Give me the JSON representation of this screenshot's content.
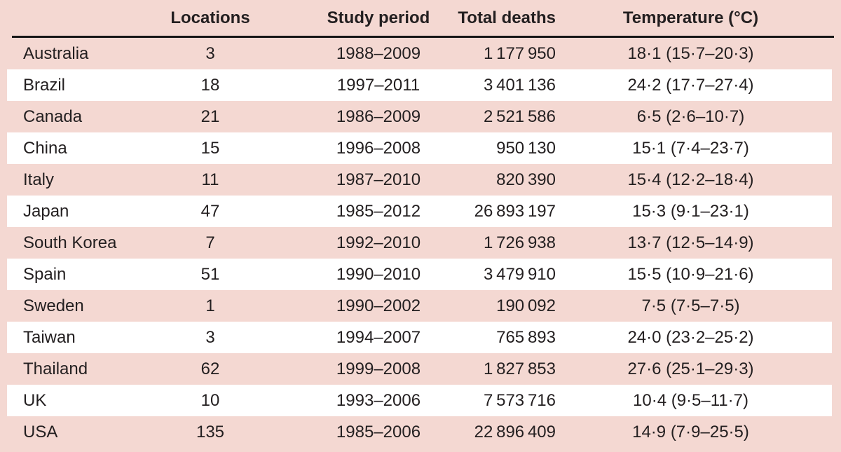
{
  "style": {
    "pink": "#f4d8d2",
    "white": "#ffffff",
    "text": "#231f20",
    "rule_color": "#161616"
  },
  "table": {
    "columns": [
      "",
      "Locations",
      "Study period",
      "Total deaths",
      "Temperature (°C)"
    ],
    "rows": [
      {
        "country": "Australia",
        "locations": "3",
        "period": "1988–2009",
        "deaths": "1 177 950",
        "temperature": "18·1 (15·7–20·3)"
      },
      {
        "country": "Brazil",
        "locations": "18",
        "period": "1997–2011",
        "deaths": "3 401 136",
        "temperature": "24·2 (17·7–27·4)"
      },
      {
        "country": "Canada",
        "locations": "21",
        "period": "1986–2009",
        "deaths": "2 521 586",
        "temperature": "6·5 (2·6–10·7)"
      },
      {
        "country": "China",
        "locations": "15",
        "period": "1996–2008",
        "deaths": "950 130",
        "temperature": "15·1 (7·4–23·7)"
      },
      {
        "country": "Italy",
        "locations": "11",
        "period": "1987–2010",
        "deaths": "820 390",
        "temperature": "15·4 (12·2–18·4)"
      },
      {
        "country": "Japan",
        "locations": "47",
        "period": "1985–2012",
        "deaths": "26 893 197",
        "temperature": "15·3 (9·1–23·1)"
      },
      {
        "country": "South Korea",
        "locations": "7",
        "period": "1992–2010",
        "deaths": "1 726 938",
        "temperature": "13·7 (12·5–14·9)"
      },
      {
        "country": "Spain",
        "locations": "51",
        "period": "1990–2010",
        "deaths": "3 479 910",
        "temperature": "15·5 (10·9–21·6)"
      },
      {
        "country": "Sweden",
        "locations": "1",
        "period": "1990–2002",
        "deaths": "190 092",
        "temperature": "7·5 (7·5–7·5)"
      },
      {
        "country": "Taiwan",
        "locations": "3",
        "period": "1994–2007",
        "deaths": "765 893",
        "temperature": "24·0 (23·2–25·2)"
      },
      {
        "country": "Thailand",
        "locations": "62",
        "period": "1999–2008",
        "deaths": "1 827 853",
        "temperature": "27·6 (25·1–29·3)"
      },
      {
        "country": "UK",
        "locations": "10",
        "period": "1993–2006",
        "deaths": "7 573 716",
        "temperature": "10·4 (9·5–11·7)"
      },
      {
        "country": "USA",
        "locations": "135",
        "period": "1985–2006",
        "deaths": "22 896 409",
        "temperature": "14·9 (7·9–25·5)"
      }
    ]
  }
}
